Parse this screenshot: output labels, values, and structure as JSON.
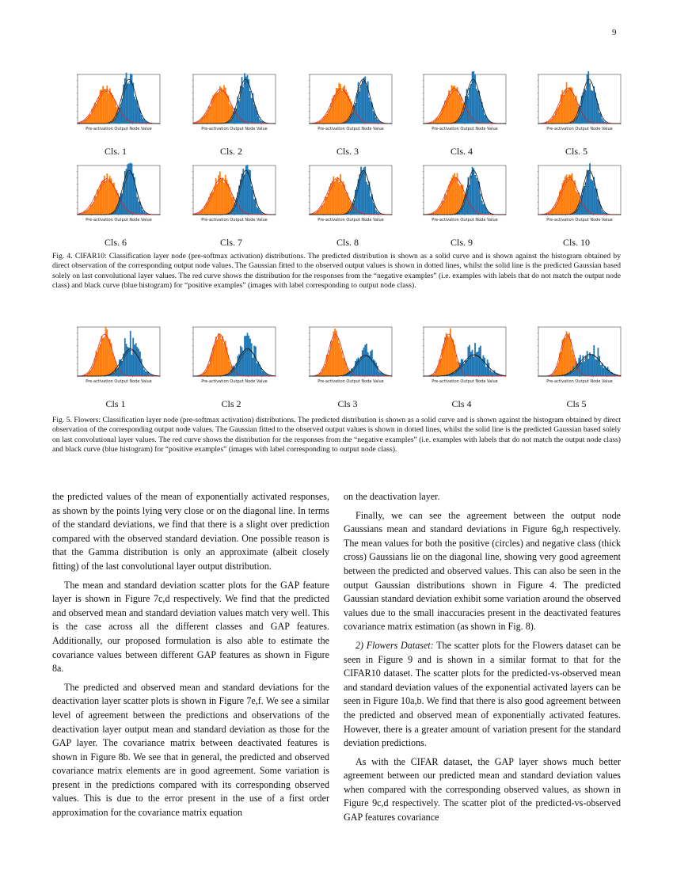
{
  "page_number": "9",
  "fig4": {
    "panels": [
      {
        "label": "Cls. 1",
        "xlabel": "Pre-activation Output Node Value",
        "variant": 0
      },
      {
        "label": "Cls. 2",
        "xlabel": "Pre-activation Output Node Value",
        "variant": 1
      },
      {
        "label": "Cls. 3",
        "xlabel": "Pre-activation Output Node Value",
        "variant": 2
      },
      {
        "label": "Cls. 4",
        "xlabel": "Pre-activation Output Node Value",
        "variant": 3
      },
      {
        "label": "Cls. 5",
        "xlabel": "Pre-activation Output Node Value",
        "variant": 4
      },
      {
        "label": "Cls. 6",
        "xlabel": "Pre-activation Output Node Value",
        "variant": 5
      },
      {
        "label": "Cls. 7",
        "xlabel": "Pre-activation Output Node Value",
        "variant": 6
      },
      {
        "label": "Cls. 8",
        "xlabel": "Pre-activation Output Node Value",
        "variant": 7
      },
      {
        "label": "Cls. 9",
        "xlabel": "Pre-activation Output Node Value",
        "variant": 8
      },
      {
        "label": "Cls. 10",
        "xlabel": "Pre-activation Output Node Value",
        "variant": 9
      }
    ],
    "caption": "Fig. 4.  CIFAR10: Classification layer node (pre-softmax activation) distributions. The predicted distribution is shown as a solid curve and is shown against the histogram obtained by direct observation of the corresponding output node values. The Gaussian fitted to the observed output values is shown in dotted lines, whilst the solid line is the predicted Gaussian based solely on last convolutional layer values. The red curve shows the distribution for the responses from the “negative examples” (i.e. examples with labels that do not match the output node class) and black curve (blue histogram) for “positive examples” (images with label corresponding to output node class)."
  },
  "fig5": {
    "panels": [
      {
        "label": "Cls 1",
        "xlabel": "Pre-activation Output Node Value",
        "variant": 10
      },
      {
        "label": "Cls 2",
        "xlabel": "Pre-activation Output Node Value",
        "variant": 11
      },
      {
        "label": "Cls 3",
        "xlabel": "Pre-activation Output Node Value",
        "variant": 12
      },
      {
        "label": "Cls 4",
        "xlabel": "Pre-activation Output Node Value",
        "variant": 13
      },
      {
        "label": "Cls 5",
        "xlabel": "Pre-activation Output Node Value",
        "variant": 14
      }
    ],
    "caption": "Fig. 5.  Flowers: Classification layer node (pre-softmax activation) distributions. The predicted distribution is shown as a solid curve and is shown against the histogram obtained by direct observation of the corresponding output node values. The Gaussian fitted to the observed output values is shown in dotted lines, whilst the solid line is the predicted Gaussian based solely on last convolutional layer values. The red curve shows the distribution for the responses from the “negative examples” (i.e. examples with labels that do not match the output node class) and black curve (blue histogram) for “positive examples” (images with label corresponding to output node class)."
  },
  "colors": {
    "negative": "#ff7f0e",
    "positive": "#1f77b4"
  },
  "left_column": {
    "p1": "the predicted values of the mean of exponentially activated responses, as shown by the points lying very close or on the diagonal line. In terms of the standard deviations, we find that there is a slight over prediction compared with the observed standard deviation. One possible reason is that the Gamma distribution is only an approximate (albeit closely fitting) of the last convolutional layer output distribution.",
    "p2": "The mean and standard deviation scatter plots for the GAP feature layer is shown in Figure 7c,d respectively. We find that the predicted and observed mean and standard deviation values match very well. This is the case across all the different classes and GAP features. Additionally, our proposed formulation is also able to estimate the covariance values between different GAP features as shown in Figure 8a.",
    "p3": "The predicted and observed mean and standard deviations for the deactivation layer scatter plots is shown in Figure 7e,f. We see a similar level of agreement between the predictions and observations of the deactivation layer output mean and standard deviation as those for the GAP layer. The covariance matrix between deactivated features is shown in Figure 8b. We see that in general, the predicted and observed covariance matrix elements are in good agreement. Some variation is present in the predictions compared with its corresponding observed values. This is due to the error present in the use of a first order approximation for the covariance matrix equation"
  },
  "right_column": {
    "p1": "on the deactivation layer.",
    "p2": "Finally, we can see the agreement between the output node Gaussians mean and standard deviations in Figure 6g,h respectively. The mean values for both the positive (circles) and negative class (thick cross) Gaussians lie on the diagonal line, showing very good agreement between the predicted and observed values. This can also be seen in the output Gaussian distributions shown in Figure 4. The predicted Gaussian standard deviation exhibit some variation around the observed values due to the small inaccuracies present in the deactivated features covariance matrix estimation (as shown in Fig. 8).",
    "p3_heading": "2) Flowers Dataset:",
    "p3": " The scatter plots for the Flowers dataset can be seen in Figure 9 and is shown in a similar format to that for the CIFAR10 dataset. The scatter plots for the predicted-vs-observed mean and standard deviation values of the exponential activated layers can be seen in Figure 10a,b. We find that there is also good agreement between the predicted and observed mean of exponentially activated features. However, there is a greater amount of variation present for the standard deviation predictions.",
    "p4": "As with the CIFAR dataset, the GAP layer shows much better agreement between our predicted mean and standard deviation values when compared with the corresponding observed values, as shown in Figure 9c,d respectively. The scatter plot of the predicted-vs-observed GAP features covariance"
  }
}
